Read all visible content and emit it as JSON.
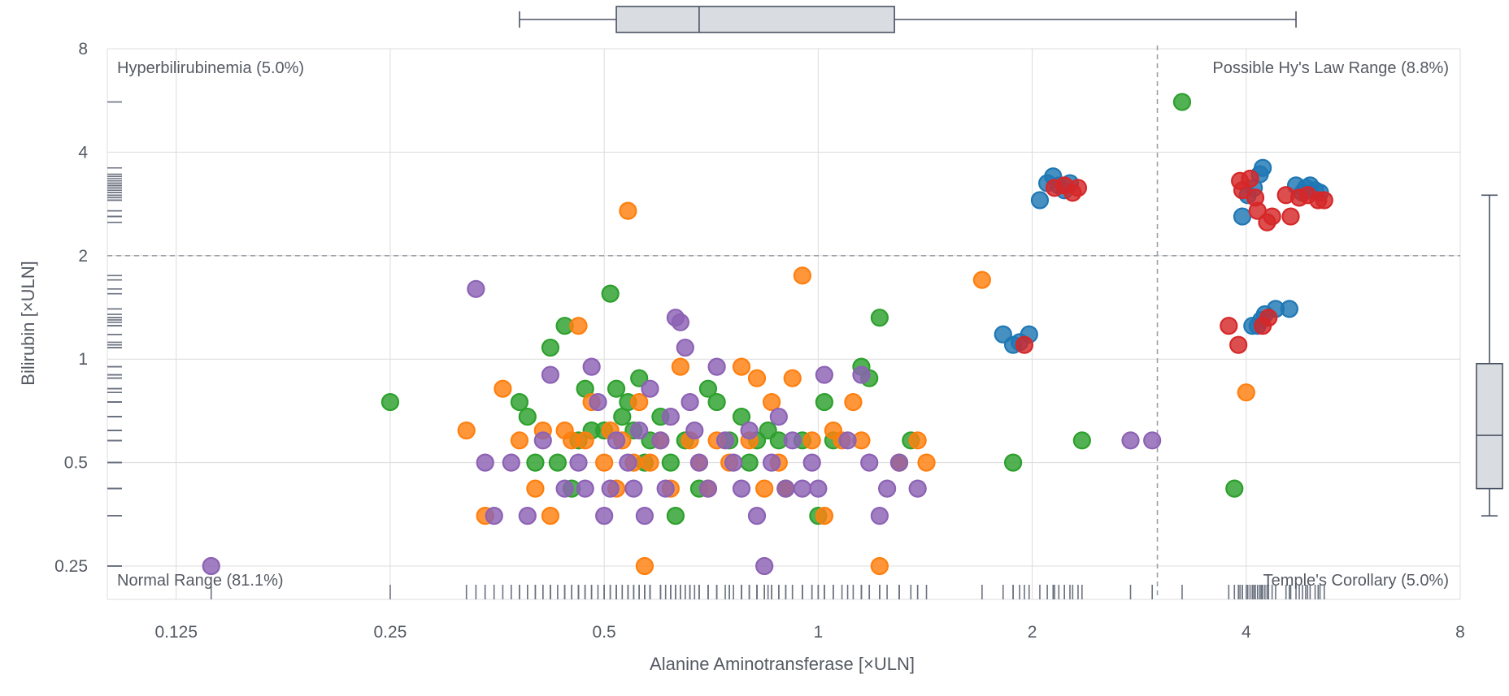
{
  "chart_data": {
    "type": "scatter",
    "xlabel": "Alanine Aminotransferase [×ULN]",
    "ylabel": "Bilirubin [×ULN]",
    "x_scale": "log2",
    "y_scale": "log2",
    "xlim": [
      0.1,
      8
    ],
    "ylim": [
      0.2,
      8
    ],
    "x_ticks": [
      "0.125",
      "0.25",
      "0.5",
      "1",
      "2",
      "4",
      "8"
    ],
    "x_tick_values": [
      0.125,
      0.25,
      0.5,
      1,
      2,
      4,
      8
    ],
    "y_ticks": [
      "0.25",
      "0.5",
      "1",
      "2",
      "4",
      "8"
    ],
    "y_tick_values": [
      0.25,
      0.5,
      1,
      2,
      4,
      8
    ],
    "grid": true,
    "thresholds": {
      "x": 3,
      "y": 2
    },
    "quadrant_labels": {
      "top_left": "Hyperbilirubinemia (5.0%)",
      "top_right": "Possible Hy's Law Range (8.8%)",
      "bottom_left": "Normal Range (81.1%)",
      "bottom_right": "Temple's Corollary (5.0%)"
    },
    "marginal_box_x": {
      "min": 0.38,
      "q1": 0.52,
      "median": 0.68,
      "q3": 1.28,
      "max": 4.7
    },
    "marginal_box_y": {
      "min": 0.35,
      "q1": 0.42,
      "median": 0.6,
      "q3": 0.97,
      "max": 3.0
    },
    "series": [
      {
        "color": "#2ca02c",
        "points": [
          [
            0.25,
            0.75
          ],
          [
            0.38,
            0.75
          ],
          [
            0.39,
            0.68
          ],
          [
            0.4,
            0.5
          ],
          [
            0.42,
            1.08
          ],
          [
            0.43,
            0.5
          ],
          [
            0.44,
            1.25
          ],
          [
            0.45,
            0.42
          ],
          [
            0.46,
            0.58
          ],
          [
            0.47,
            0.82
          ],
          [
            0.48,
            0.62
          ],
          [
            0.5,
            0.62
          ],
          [
            0.51,
            1.55
          ],
          [
            0.52,
            0.82
          ],
          [
            0.53,
            0.68
          ],
          [
            0.54,
            0.75
          ],
          [
            0.55,
            0.62
          ],
          [
            0.56,
            0.88
          ],
          [
            0.57,
            0.5
          ],
          [
            0.58,
            0.58
          ],
          [
            0.6,
            0.68
          ],
          [
            0.62,
            0.5
          ],
          [
            0.63,
            0.35
          ],
          [
            0.65,
            0.58
          ],
          [
            0.68,
            0.42
          ],
          [
            0.7,
            0.82
          ],
          [
            0.72,
            0.75
          ],
          [
            0.75,
            0.58
          ],
          [
            0.78,
            0.68
          ],
          [
            0.8,
            0.5
          ],
          [
            0.82,
            0.58
          ],
          [
            0.85,
            0.62
          ],
          [
            0.88,
            0.58
          ],
          [
            0.9,
            0.42
          ],
          [
            0.95,
            0.58
          ],
          [
            1.0,
            0.35
          ],
          [
            1.02,
            0.75
          ],
          [
            1.05,
            0.58
          ],
          [
            1.15,
            0.95
          ],
          [
            1.18,
            0.88
          ],
          [
            1.22,
            1.32
          ],
          [
            1.3,
            0.5
          ],
          [
            1.35,
            0.58
          ],
          [
            1.88,
            0.5
          ],
          [
            2.35,
            0.58
          ],
          [
            3.25,
            5.6
          ],
          [
            3.85,
            0.42
          ]
        ]
      },
      {
        "color": "#ff7f0e",
        "points": [
          [
            0.32,
            0.62
          ],
          [
            0.34,
            0.35
          ],
          [
            0.36,
            0.82
          ],
          [
            0.38,
            0.58
          ],
          [
            0.4,
            0.42
          ],
          [
            0.41,
            0.62
          ],
          [
            0.42,
            0.35
          ],
          [
            0.44,
            0.62
          ],
          [
            0.45,
            0.58
          ],
          [
            0.46,
            1.25
          ],
          [
            0.47,
            0.58
          ],
          [
            0.48,
            0.75
          ],
          [
            0.5,
            0.5
          ],
          [
            0.51,
            0.62
          ],
          [
            0.52,
            0.42
          ],
          [
            0.53,
            0.58
          ],
          [
            0.54,
            2.7
          ],
          [
            0.55,
            0.5
          ],
          [
            0.56,
            0.75
          ],
          [
            0.57,
            0.25
          ],
          [
            0.58,
            0.5
          ],
          [
            0.6,
            0.58
          ],
          [
            0.62,
            0.42
          ],
          [
            0.64,
            0.95
          ],
          [
            0.66,
            0.58
          ],
          [
            0.68,
            0.5
          ],
          [
            0.7,
            0.42
          ],
          [
            0.72,
            0.58
          ],
          [
            0.75,
            0.5
          ],
          [
            0.78,
            0.95
          ],
          [
            0.8,
            0.58
          ],
          [
            0.82,
            0.88
          ],
          [
            0.84,
            0.42
          ],
          [
            0.86,
            0.75
          ],
          [
            0.88,
            0.5
          ],
          [
            0.9,
            0.42
          ],
          [
            0.92,
            0.88
          ],
          [
            0.95,
            1.75
          ],
          [
            0.98,
            0.58
          ],
          [
            1.02,
            0.35
          ],
          [
            1.05,
            0.62
          ],
          [
            1.08,
            0.58
          ],
          [
            1.12,
            0.75
          ],
          [
            1.15,
            0.58
          ],
          [
            1.22,
            0.25
          ],
          [
            1.3,
            0.5
          ],
          [
            1.38,
            0.58
          ],
          [
            1.42,
            0.5
          ],
          [
            1.7,
            1.7
          ],
          [
            4.0,
            0.8
          ]
        ]
      },
      {
        "color": "#8c62b4",
        "points": [
          [
            0.14,
            0.25
          ],
          [
            0.33,
            1.6
          ],
          [
            0.34,
            0.5
          ],
          [
            0.35,
            0.35
          ],
          [
            0.37,
            0.5
          ],
          [
            0.39,
            0.35
          ],
          [
            0.41,
            0.58
          ],
          [
            0.42,
            0.9
          ],
          [
            0.44,
            0.42
          ],
          [
            0.46,
            0.5
          ],
          [
            0.47,
            0.42
          ],
          [
            0.48,
            0.95
          ],
          [
            0.49,
            0.75
          ],
          [
            0.5,
            0.35
          ],
          [
            0.51,
            0.42
          ],
          [
            0.52,
            0.58
          ],
          [
            0.54,
            0.5
          ],
          [
            0.55,
            0.42
          ],
          [
            0.56,
            0.62
          ],
          [
            0.57,
            0.35
          ],
          [
            0.58,
            0.82
          ],
          [
            0.6,
            0.58
          ],
          [
            0.61,
            0.42
          ],
          [
            0.62,
            0.68
          ],
          [
            0.63,
            1.32
          ],
          [
            0.64,
            1.28
          ],
          [
            0.65,
            1.08
          ],
          [
            0.66,
            0.75
          ],
          [
            0.67,
            0.62
          ],
          [
            0.68,
            0.5
          ],
          [
            0.7,
            0.42
          ],
          [
            0.72,
            0.95
          ],
          [
            0.74,
            0.58
          ],
          [
            0.76,
            0.5
          ],
          [
            0.78,
            0.42
          ],
          [
            0.8,
            0.62
          ],
          [
            0.82,
            0.35
          ],
          [
            0.84,
            0.25
          ],
          [
            0.86,
            0.5
          ],
          [
            0.88,
            0.68
          ],
          [
            0.9,
            0.42
          ],
          [
            0.92,
            0.58
          ],
          [
            0.95,
            0.42
          ],
          [
            0.98,
            0.5
          ],
          [
            1.0,
            0.42
          ],
          [
            1.02,
            0.9
          ],
          [
            1.1,
            0.58
          ],
          [
            1.15,
            0.9
          ],
          [
            1.18,
            0.5
          ],
          [
            1.22,
            0.35
          ],
          [
            1.25,
            0.42
          ],
          [
            1.3,
            0.5
          ],
          [
            1.38,
            0.42
          ],
          [
            2.75,
            0.58
          ],
          [
            2.95,
            0.58
          ]
        ]
      },
      {
        "color": "#1f77b4",
        "points": [
          [
            1.82,
            1.18
          ],
          [
            1.88,
            1.1
          ],
          [
            1.92,
            1.12
          ],
          [
            1.98,
            1.18
          ],
          [
            2.05,
            2.9
          ],
          [
            2.1,
            3.25
          ],
          [
            2.14,
            3.4
          ],
          [
            2.18,
            3.2
          ],
          [
            2.22,
            3.1
          ],
          [
            2.26,
            3.25
          ],
          [
            3.95,
            2.6
          ],
          [
            4.02,
            3.0
          ],
          [
            4.1,
            3.15
          ],
          [
            4.18,
            3.45
          ],
          [
            4.22,
            3.6
          ],
          [
            4.08,
            1.25
          ],
          [
            4.15,
            1.25
          ],
          [
            4.2,
            1.3
          ],
          [
            4.25,
            1.35
          ],
          [
            4.4,
            1.4
          ],
          [
            4.7,
            3.2
          ],
          [
            4.8,
            3.05
          ],
          [
            4.85,
            3.15
          ],
          [
            4.92,
            3.2
          ],
          [
            5.0,
            3.1
          ],
          [
            5.08,
            3.05
          ],
          [
            4.6,
            1.4
          ]
        ]
      },
      {
        "color": "#d62728",
        "points": [
          [
            1.95,
            1.1
          ],
          [
            2.15,
            3.15
          ],
          [
            2.22,
            3.2
          ],
          [
            2.28,
            3.05
          ],
          [
            2.32,
            3.15
          ],
          [
            3.78,
            1.25
          ],
          [
            3.9,
            1.1
          ],
          [
            3.92,
            3.3
          ],
          [
            3.95,
            3.1
          ],
          [
            4.05,
            3.35
          ],
          [
            4.12,
            2.95
          ],
          [
            4.15,
            2.7
          ],
          [
            4.22,
            1.25
          ],
          [
            4.28,
            2.5
          ],
          [
            4.3,
            1.32
          ],
          [
            4.35,
            2.6
          ],
          [
            4.55,
            3.0
          ],
          [
            4.62,
            2.6
          ],
          [
            4.75,
            2.95
          ],
          [
            4.88,
            3.0
          ],
          [
            5.05,
            2.9
          ],
          [
            5.15,
            2.9
          ]
        ]
      }
    ]
  }
}
